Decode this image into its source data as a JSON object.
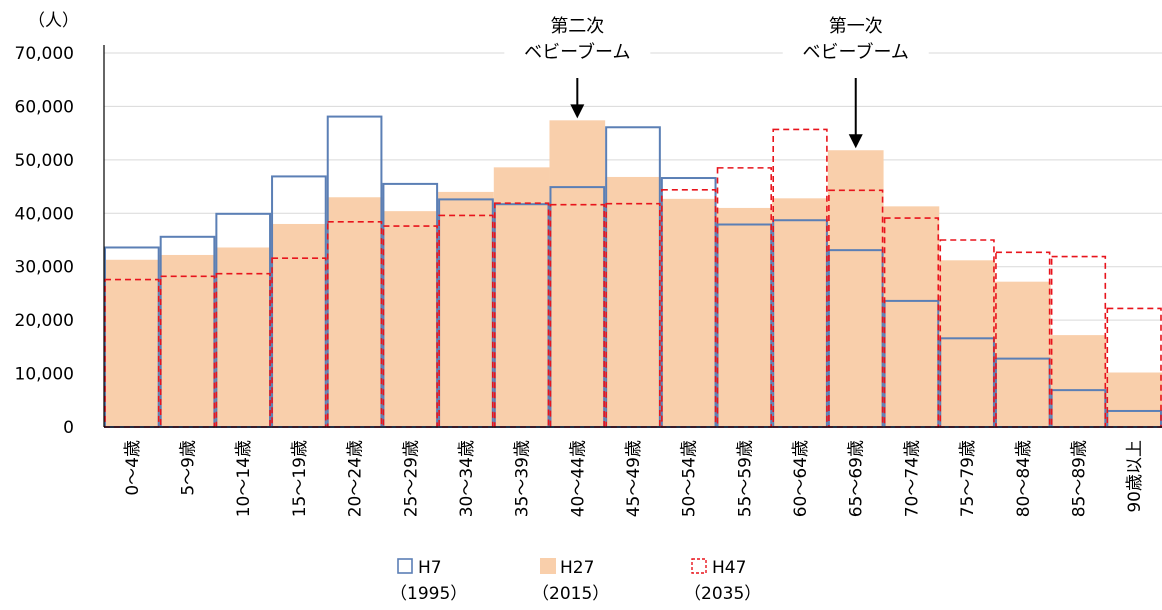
{
  "chart_data": {
    "type": "bar",
    "unit_label": "（人）",
    "categories": [
      "0～4歳",
      "5～9歳",
      "10～14歳",
      "15～19歳",
      "20～24歳",
      "25～29歳",
      "30～34歳",
      "35～39歳",
      "40～44歳",
      "45～49歳",
      "50～54歳",
      "55～59歳",
      "60～64歳",
      "65～69歳",
      "70～74歳",
      "75～79歳",
      "80～84歳",
      "85～89歳",
      "90歳以上"
    ],
    "ylim": [
      0,
      70000
    ],
    "yticks": [
      0,
      10000,
      20000,
      30000,
      40000,
      50000,
      60000,
      70000
    ],
    "ytick_labels": [
      "0",
      "10,000",
      "20,000",
      "30,000",
      "40,000",
      "50,000",
      "60,000",
      "70,000"
    ],
    "grid": true,
    "legend_position": "bottom",
    "series": [
      {
        "name": "H7",
        "sub": "（1995）",
        "style": "outline",
        "color": "#5b7fb5",
        "values": [
          33600,
          35600,
          39900,
          46900,
          58100,
          45500,
          42600,
          41700,
          44900,
          56100,
          46600,
          37900,
          38700,
          33100,
          23600,
          16600,
          12800,
          6900,
          3000
        ]
      },
      {
        "name": "H27",
        "sub": "（2015）",
        "style": "filled",
        "color": "#f9cfab",
        "values": [
          31300,
          32200,
          33600,
          38000,
          43000,
          40400,
          44000,
          48600,
          57400,
          46800,
          42700,
          41000,
          42800,
          51800,
          41300,
          31200,
          27200,
          17200,
          10200
        ]
      },
      {
        "name": "H47",
        "sub": "（2035）",
        "style": "dashed",
        "color": "#e8141c",
        "values": [
          27600,
          28200,
          28700,
          31600,
          38400,
          37600,
          39600,
          41900,
          41600,
          41800,
          44400,
          48500,
          55700,
          44300,
          39100,
          35000,
          32700,
          31900,
          22200
        ]
      }
    ],
    "annotations": [
      {
        "lines": [
          "第二次",
          "ベビーブーム"
        ],
        "category_index": 8
      },
      {
        "lines": [
          "第一次",
          "ベビーブーム"
        ],
        "category_index": 13
      }
    ]
  }
}
